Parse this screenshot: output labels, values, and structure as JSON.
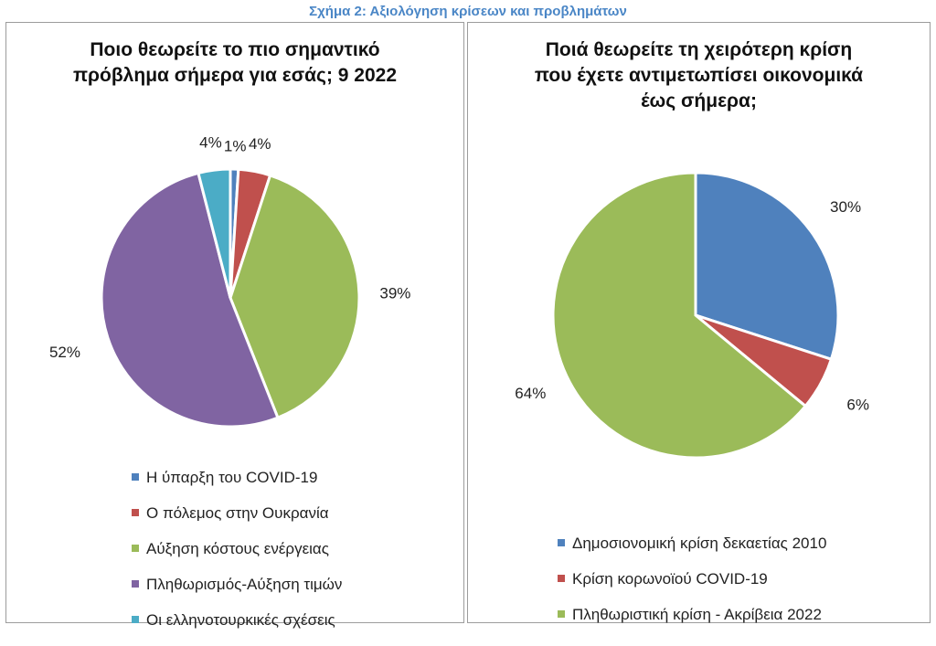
{
  "figure_title": "Σχήμα 2: Αξιολόγηση κρίσεων και προβλημάτων",
  "colors": {
    "title": "#4a86c6",
    "border": "#9c9c9c"
  },
  "chart_data": [
    {
      "type": "pie",
      "title_lines": [
        "Ποιο θεωρείτε το πιο σημαντικό",
        "πρόβλημα σήμερα για εσάς; 9 2022"
      ],
      "slices": [
        {
          "label": "Η ύπαρξη του COVID-19",
          "value": 1,
          "value_label": "1%",
          "color": "#4f81bd"
        },
        {
          "label": "Ο πόλεμος στην Ουκρανία",
          "value": 4,
          "value_label": "4%",
          "color": "#c0504d"
        },
        {
          "label": "Αύξηση κόστους ενέργειας",
          "value": 39,
          "value_label": "39%",
          "color": "#9bbb59"
        },
        {
          "label": "Πληθωρισμός-Αύξηση τιμών",
          "value": 52,
          "value_label": "52%",
          "color": "#8064a2"
        },
        {
          "label": "Οι ελληνοτουρκικές σχέσεις",
          "value": 4,
          "value_label": "4%",
          "color": "#4bacc6"
        }
      ],
      "legend_position": "bottom"
    },
    {
      "type": "pie",
      "title_lines": [
        "Ποιά θεωρείτε τη χειρότερη κρίση",
        "που έχετε αντιμετωπίσει οικονομικά",
        "έως σήμερα;"
      ],
      "slices": [
        {
          "label": "Δημοσιονομική κρίση δεκαετίας 2010",
          "value": 30,
          "value_label": "30%",
          "color": "#4f81bd"
        },
        {
          "label": "Κρίση κορωνοϊού COVID-19",
          "value": 6,
          "value_label": "6%",
          "color": "#c0504d"
        },
        {
          "label": "Πληθωριστική κρίση - Ακρίβεια 2022",
          "value": 64,
          "value_label": "64%",
          "color": "#9bbb59"
        }
      ],
      "legend_position": "bottom"
    }
  ]
}
